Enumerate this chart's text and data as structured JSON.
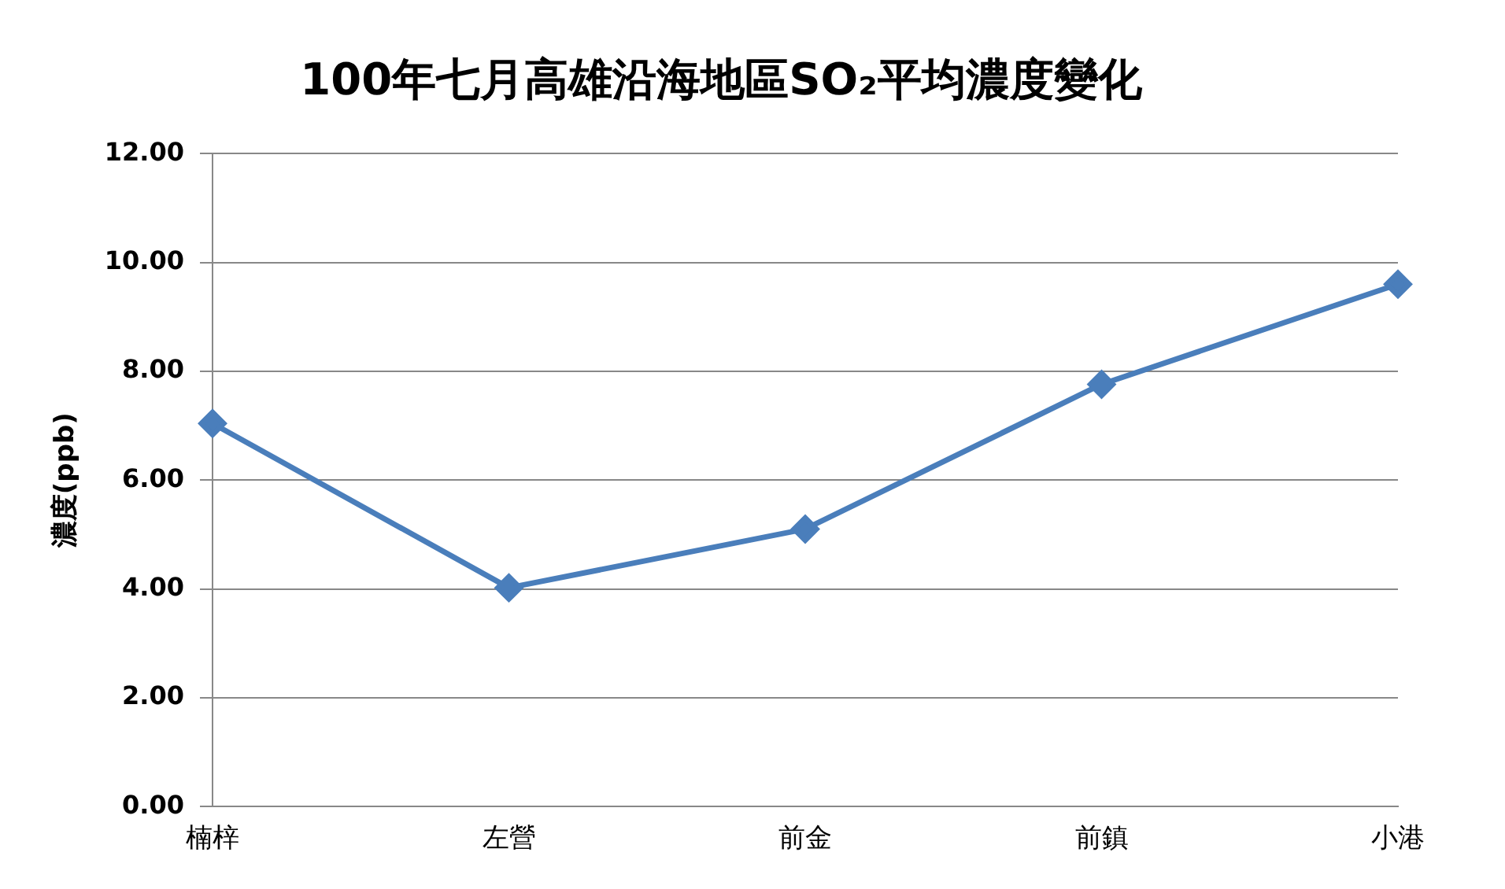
{
  "chart_data": {
    "type": "line",
    "title": "100年七月高雄沿海地區SO₂平均濃度變化",
    "ylabel": "濃度(ppb)",
    "categories": [
      "楠梓",
      "左營",
      "前金",
      "前鎮",
      "小港"
    ],
    "series": [
      {
        "color": "#4a7ebb",
        "values": [
          7.04,
          4.02,
          5.1,
          7.76,
          9.6
        ]
      }
    ],
    "ylim": [
      0,
      12
    ],
    "yticks": [
      {
        "value": 0,
        "label": "0.00"
      },
      {
        "value": 2,
        "label": "2.00"
      },
      {
        "value": 4,
        "label": "4.00"
      },
      {
        "value": 6,
        "label": "6.00"
      },
      {
        "value": 8,
        "label": "8.00"
      },
      {
        "value": 10,
        "label": "10.00"
      },
      {
        "value": 12,
        "label": "12.00"
      }
    ],
    "grid": "y",
    "legend": false,
    "marker": "diamond",
    "line_style": "solid"
  }
}
